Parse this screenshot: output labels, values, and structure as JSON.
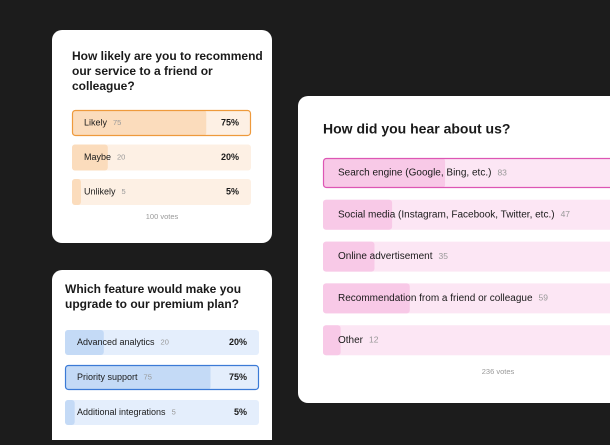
{
  "polls": [
    {
      "question": [
        "How likely are you to recommend",
        "our service to a friend or",
        "colleague?"
      ],
      "options": [
        "Likely",
        "Maybe",
        "Unlikely"
      ],
      "votes": [
        75,
        20,
        5
      ],
      "percents": [
        75,
        20,
        5
      ],
      "percent_labels": [
        "75%",
        "20%",
        "5%"
      ],
      "xlim": [
        0,
        100
      ],
      "selected": 0,
      "total_label": "100 votes",
      "colors": {
        "track": "#fdf0e4",
        "fill": "#fbdcbc",
        "border": "#ee9a3c"
      }
    },
    {
      "question": [
        "Which feature would make you",
        "upgrade to our premium plan?"
      ],
      "options": [
        "Advanced analytics",
        "Priority support",
        "Additional integrations"
      ],
      "votes": [
        20,
        75,
        5
      ],
      "percents": [
        20,
        75,
        5
      ],
      "percent_labels": [
        "20%",
        "75%",
        "5%"
      ],
      "xlim": [
        0,
        100
      ],
      "selected": 1,
      "colors": {
        "track": "#e4eefc",
        "fill": "#c4daf6",
        "border": "#3b7ad6"
      }
    },
    {
      "question": [
        "How did you hear about us?"
      ],
      "options": [
        "Search engine (Google, Bing, etc.)",
        "Social media (Instagram, Facebook, Twitter, etc.)",
        "Online advertisement",
        "Recommendation from a friend or colleague",
        "Other"
      ],
      "votes": [
        83,
        47,
        35,
        59,
        12
      ],
      "xlim": [
        0,
        236
      ],
      "selected": 0,
      "total_label": "236 votes",
      "colors": {
        "track": "#fce6f4",
        "fill": "#f8c9e7",
        "border": "#dd56b4"
      }
    }
  ]
}
